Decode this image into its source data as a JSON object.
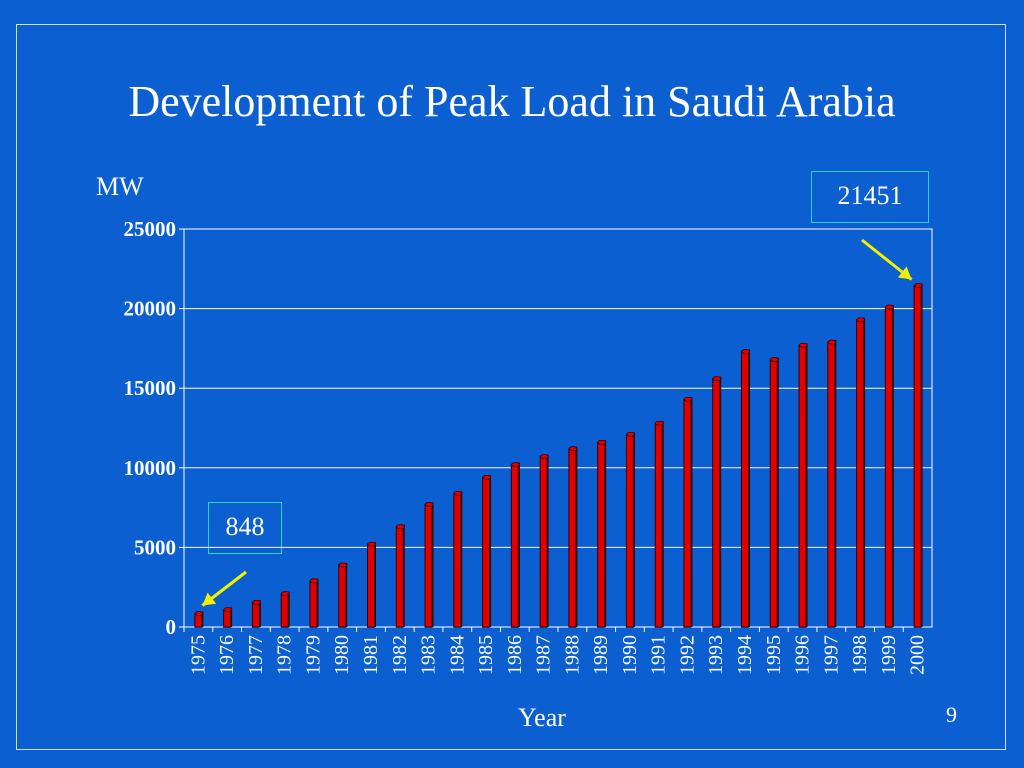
{
  "slide": {
    "title": "Development of Peak Load in Saudi Arabia",
    "page_number": "9"
  },
  "callouts": {
    "max_value": "21451",
    "min_value": "848"
  },
  "colors": {
    "background": "#0b5fd0",
    "bar": "#e00000",
    "bar_outline": "#3a0000",
    "gridline": "#ffffff",
    "arrow": "#f0f000",
    "text": "#ffffff"
  },
  "chart_data": {
    "type": "bar",
    "title": "Development of Peak Load in Saudi Arabia",
    "xlabel": "Year",
    "ylabel": "MW",
    "ylim": [
      0,
      25000
    ],
    "yticks": [
      0,
      5000,
      10000,
      15000,
      20000,
      25000
    ],
    "grid": true,
    "categories": [
      "1975",
      "1976",
      "1977",
      "1978",
      "1979",
      "1980",
      "1981",
      "1982",
      "1983",
      "1984",
      "1985",
      "1986",
      "1987",
      "1988",
      "1989",
      "1990",
      "1991",
      "1992",
      "1993",
      "1994",
      "1995",
      "1996",
      "1997",
      "1998",
      "1999",
      "2000"
    ],
    "values": [
      848,
      1100,
      1550,
      2100,
      2900,
      3900,
      5200,
      6300,
      7700,
      8400,
      9400,
      10200,
      10700,
      11200,
      11600,
      12100,
      12800,
      14300,
      15600,
      17300,
      16800,
      17700,
      17900,
      19300,
      20100,
      21451
    ]
  }
}
